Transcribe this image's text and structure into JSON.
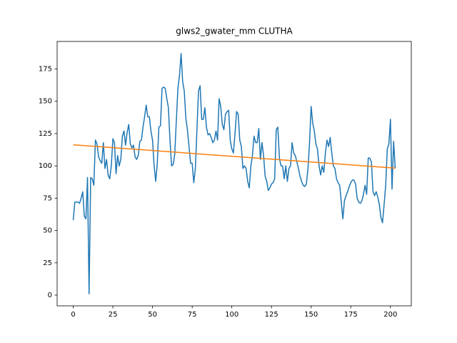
{
  "chart_data": {
    "type": "line",
    "title": "glws2_gwater_mm CLUTHA",
    "xlim": [
      -10.15,
      213.15
    ],
    "ylim": [
      -8.3,
      196.3
    ],
    "xticks": [
      0,
      25,
      50,
      75,
      100,
      125,
      150,
      175,
      200
    ],
    "yticks": [
      0,
      25,
      50,
      75,
      100,
      125,
      150,
      175
    ],
    "series": [
      {
        "color": "#1f77b4",
        "x": [
          0,
          1,
          2,
          3,
          4,
          5,
          6,
          7,
          8,
          9,
          10,
          11,
          12,
          13,
          14,
          15,
          16,
          17,
          18,
          19,
          20,
          21,
          22,
          23,
          24,
          25,
          26,
          27,
          28,
          29,
          30,
          31,
          32,
          33,
          34,
          35,
          36,
          37,
          38,
          39,
          40,
          41,
          42,
          43,
          44,
          45,
          46,
          47,
          48,
          49,
          50,
          51,
          52,
          53,
          54,
          55,
          56,
          57,
          58,
          59,
          60,
          61,
          62,
          63,
          64,
          65,
          66,
          67,
          68,
          69,
          70,
          71,
          72,
          73,
          74,
          75,
          76,
          77,
          78,
          79,
          80,
          81,
          82,
          83,
          84,
          85,
          86,
          87,
          88,
          89,
          90,
          91,
          92,
          93,
          94,
          95,
          96,
          97,
          98,
          99,
          100,
          101,
          102,
          103,
          104,
          105,
          106,
          107,
          108,
          109,
          110,
          111,
          112,
          113,
          114,
          115,
          116,
          117,
          118,
          119,
          120,
          121,
          122,
          123,
          124,
          125,
          126,
          127,
          128,
          129,
          130,
          131,
          132,
          133,
          134,
          135,
          136,
          137,
          138,
          139,
          140,
          141,
          142,
          143,
          144,
          145,
          146,
          147,
          148,
          149,
          150,
          151,
          152,
          153,
          154,
          155,
          156,
          157,
          158,
          159,
          160,
          161,
          162,
          163,
          164,
          165,
          166,
          167,
          168,
          169,
          170,
          171,
          172,
          173,
          174,
          175,
          176,
          177,
          178,
          179,
          180,
          181,
          182,
          183,
          184,
          185,
          186,
          187,
          188,
          189,
          190,
          191,
          192,
          193,
          194,
          195,
          196,
          197,
          198,
          199,
          200,
          201,
          202,
          203
        ],
        "values": [
          58,
          72,
          72,
          72,
          71,
          75,
          80,
          61,
          59,
          91,
          1,
          91,
          90,
          85,
          120,
          117,
          107,
          104,
          102,
          118,
          98,
          105,
          93,
          90,
          100,
          121,
          118,
          94,
          108,
          100,
          105,
          123,
          127,
          116,
          126,
          132,
          117,
          114,
          116,
          107,
          105,
          108,
          119,
          120,
          130,
          138,
          147,
          138,
          138,
          127,
          120,
          100,
          88,
          102,
          130,
          131,
          160,
          161,
          160,
          152,
          145,
          120,
          100,
          101,
          109,
          135,
          160,
          170,
          187,
          165,
          158,
          137,
          128,
          115,
          102,
          102,
          87,
          98,
          128,
          158,
          162,
          136,
          136,
          145,
          130,
          124,
          125,
          122,
          118,
          120,
          127,
          120,
          152,
          146,
          132,
          128,
          140,
          142,
          143,
          120,
          113,
          110,
          125,
          142,
          140,
          120,
          115,
          98,
          100,
          98,
          88,
          83,
          100,
          108,
          123,
          118,
          118,
          129,
          105,
          118,
          108,
          92,
          88,
          81,
          83,
          86,
          87,
          90,
          128,
          130,
          106,
          100,
          100,
          90,
          100,
          88,
          98,
          100,
          118,
          110,
          108,
          103,
          98,
          92,
          88,
          85,
          84,
          86,
          98,
          118,
          146,
          133,
          127,
          117,
          113,
          100,
          93,
          100,
          95,
          110,
          120,
          115,
          122,
          110,
          100,
          98,
          90,
          87,
          85,
          72,
          59,
          73,
          77,
          80,
          84,
          87,
          89,
          89,
          86,
          75,
          72,
          71,
          73,
          78,
          85,
          78,
          106,
          106,
          103,
          80,
          77,
          80,
          76,
          70,
          60,
          56,
          70,
          85,
          113,
          117,
          136,
          82,
          119,
          98
        ]
      },
      {
        "color": "#ff7f0e",
        "x": [
          0,
          203
        ],
        "values": [
          116.3,
          98.3
        ]
      }
    ]
  }
}
